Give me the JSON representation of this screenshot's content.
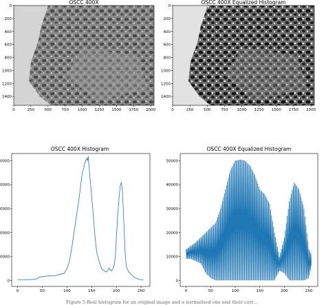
{
  "images": [
    {
      "title": "OSCC 400X",
      "xticks": [
        "0",
        "250",
        "500",
        "750",
        "1000",
        "1250",
        "1500",
        "1750",
        "2000"
      ],
      "yticks": [
        "0",
        "200",
        "400",
        "600",
        "800",
        "1000",
        "1200",
        "1400"
      ],
      "xlim": [
        0,
        2048
      ],
      "ylim": [
        0,
        1536
      ]
    },
    {
      "title": "OSCC 400X Equalized Histogram",
      "xticks": [
        "0",
        "250",
        "500",
        "750",
        "1000",
        "1250",
        "1500",
        "1750",
        "2000"
      ],
      "yticks": [
        "0",
        "200",
        "400",
        "600",
        "800",
        "1000",
        "1200",
        "1400"
      ],
      "xlim": [
        0,
        2048
      ],
      "ylim": [
        0,
        1536
      ]
    }
  ],
  "chart_data": [
    {
      "type": "line",
      "title": "OSCC 400X Histogram",
      "xlabel": "",
      "ylabel": "",
      "xlim": [
        -12,
        268
      ],
      "ylim": [
        -2500,
        53000
      ],
      "xticks": [
        0,
        50,
        100,
        150,
        200,
        250
      ],
      "yticks": [
        0,
        10000,
        20000,
        30000,
        40000,
        50000
      ],
      "series": [
        {
          "x": [
            0,
            15,
            30,
            38,
            45,
            55,
            65,
            75,
            82,
            90,
            95,
            100,
            105,
            110,
            115,
            120,
            125,
            128,
            131,
            134,
            136,
            138,
            140,
            142,
            143,
            144,
            145,
            146,
            148,
            150,
            153,
            156,
            160,
            165,
            170,
            175,
            180,
            185,
            190,
            195,
            198,
            200,
            203,
            206,
            208,
            210,
            212,
            214,
            216,
            218,
            220,
            225,
            230,
            235,
            240,
            245,
            250,
            255
          ],
          "y": [
            300,
            300,
            400,
            600,
            1400,
            1700,
            1900,
            2000,
            2300,
            2800,
            3000,
            5000,
            8000,
            14000,
            21000,
            28000,
            35000,
            40000,
            45000,
            47000,
            49000,
            50000,
            51000,
            50000,
            52000,
            49000,
            47000,
            44000,
            40000,
            35000,
            28000,
            20000,
            12000,
            8000,
            5000,
            4000,
            3500,
            5000,
            4000,
            5500,
            10000,
            18000,
            28000,
            36000,
            39500,
            41000,
            38000,
            30000,
            20000,
            11000,
            6000,
            3500,
            2500,
            1500,
            900,
            500,
            300,
            200
          ]
        }
      ]
    },
    {
      "type": "line",
      "title": "OSCC 400X Equalized Histogram",
      "xlabel": "",
      "ylabel": "",
      "xlim": [
        -12,
        268
      ],
      "ylim": [
        -2500,
        53000
      ],
      "xticks": [
        0,
        50,
        100,
        150,
        200,
        250
      ],
      "yticks": [
        0,
        10000,
        20000,
        30000,
        40000,
        50000
      ],
      "series": [
        {
          "envelope_x": [
            0,
            10,
            20,
            30,
            40,
            50,
            60,
            70,
            80,
            90,
            100,
            110,
            120,
            130,
            140,
            150,
            160,
            170,
            180,
            190,
            200,
            210,
            220,
            230,
            240,
            250,
            255
          ],
          "envelope_upper": [
            13000,
            14500,
            16000,
            18000,
            20000,
            22000,
            24000,
            30000,
            38000,
            46000,
            50000,
            50500,
            50000,
            48000,
            44000,
            38000,
            36000,
            32000,
            20000,
            10000,
            18000,
            33000,
            41000,
            38000,
            30000,
            13000,
            11000
          ],
          "envelope_lower": [
            9000,
            9000,
            8000,
            7000,
            3000,
            1000,
            0,
            0,
            0,
            0,
            0,
            0,
            0,
            0,
            0,
            0,
            0,
            0,
            0,
            4000,
            3000,
            0,
            0,
            0,
            0,
            1000,
            6000
          ]
        }
      ]
    }
  ],
  "caption": "Figure 5  Real histogram for an original image and a normalised one and their corr..."
}
